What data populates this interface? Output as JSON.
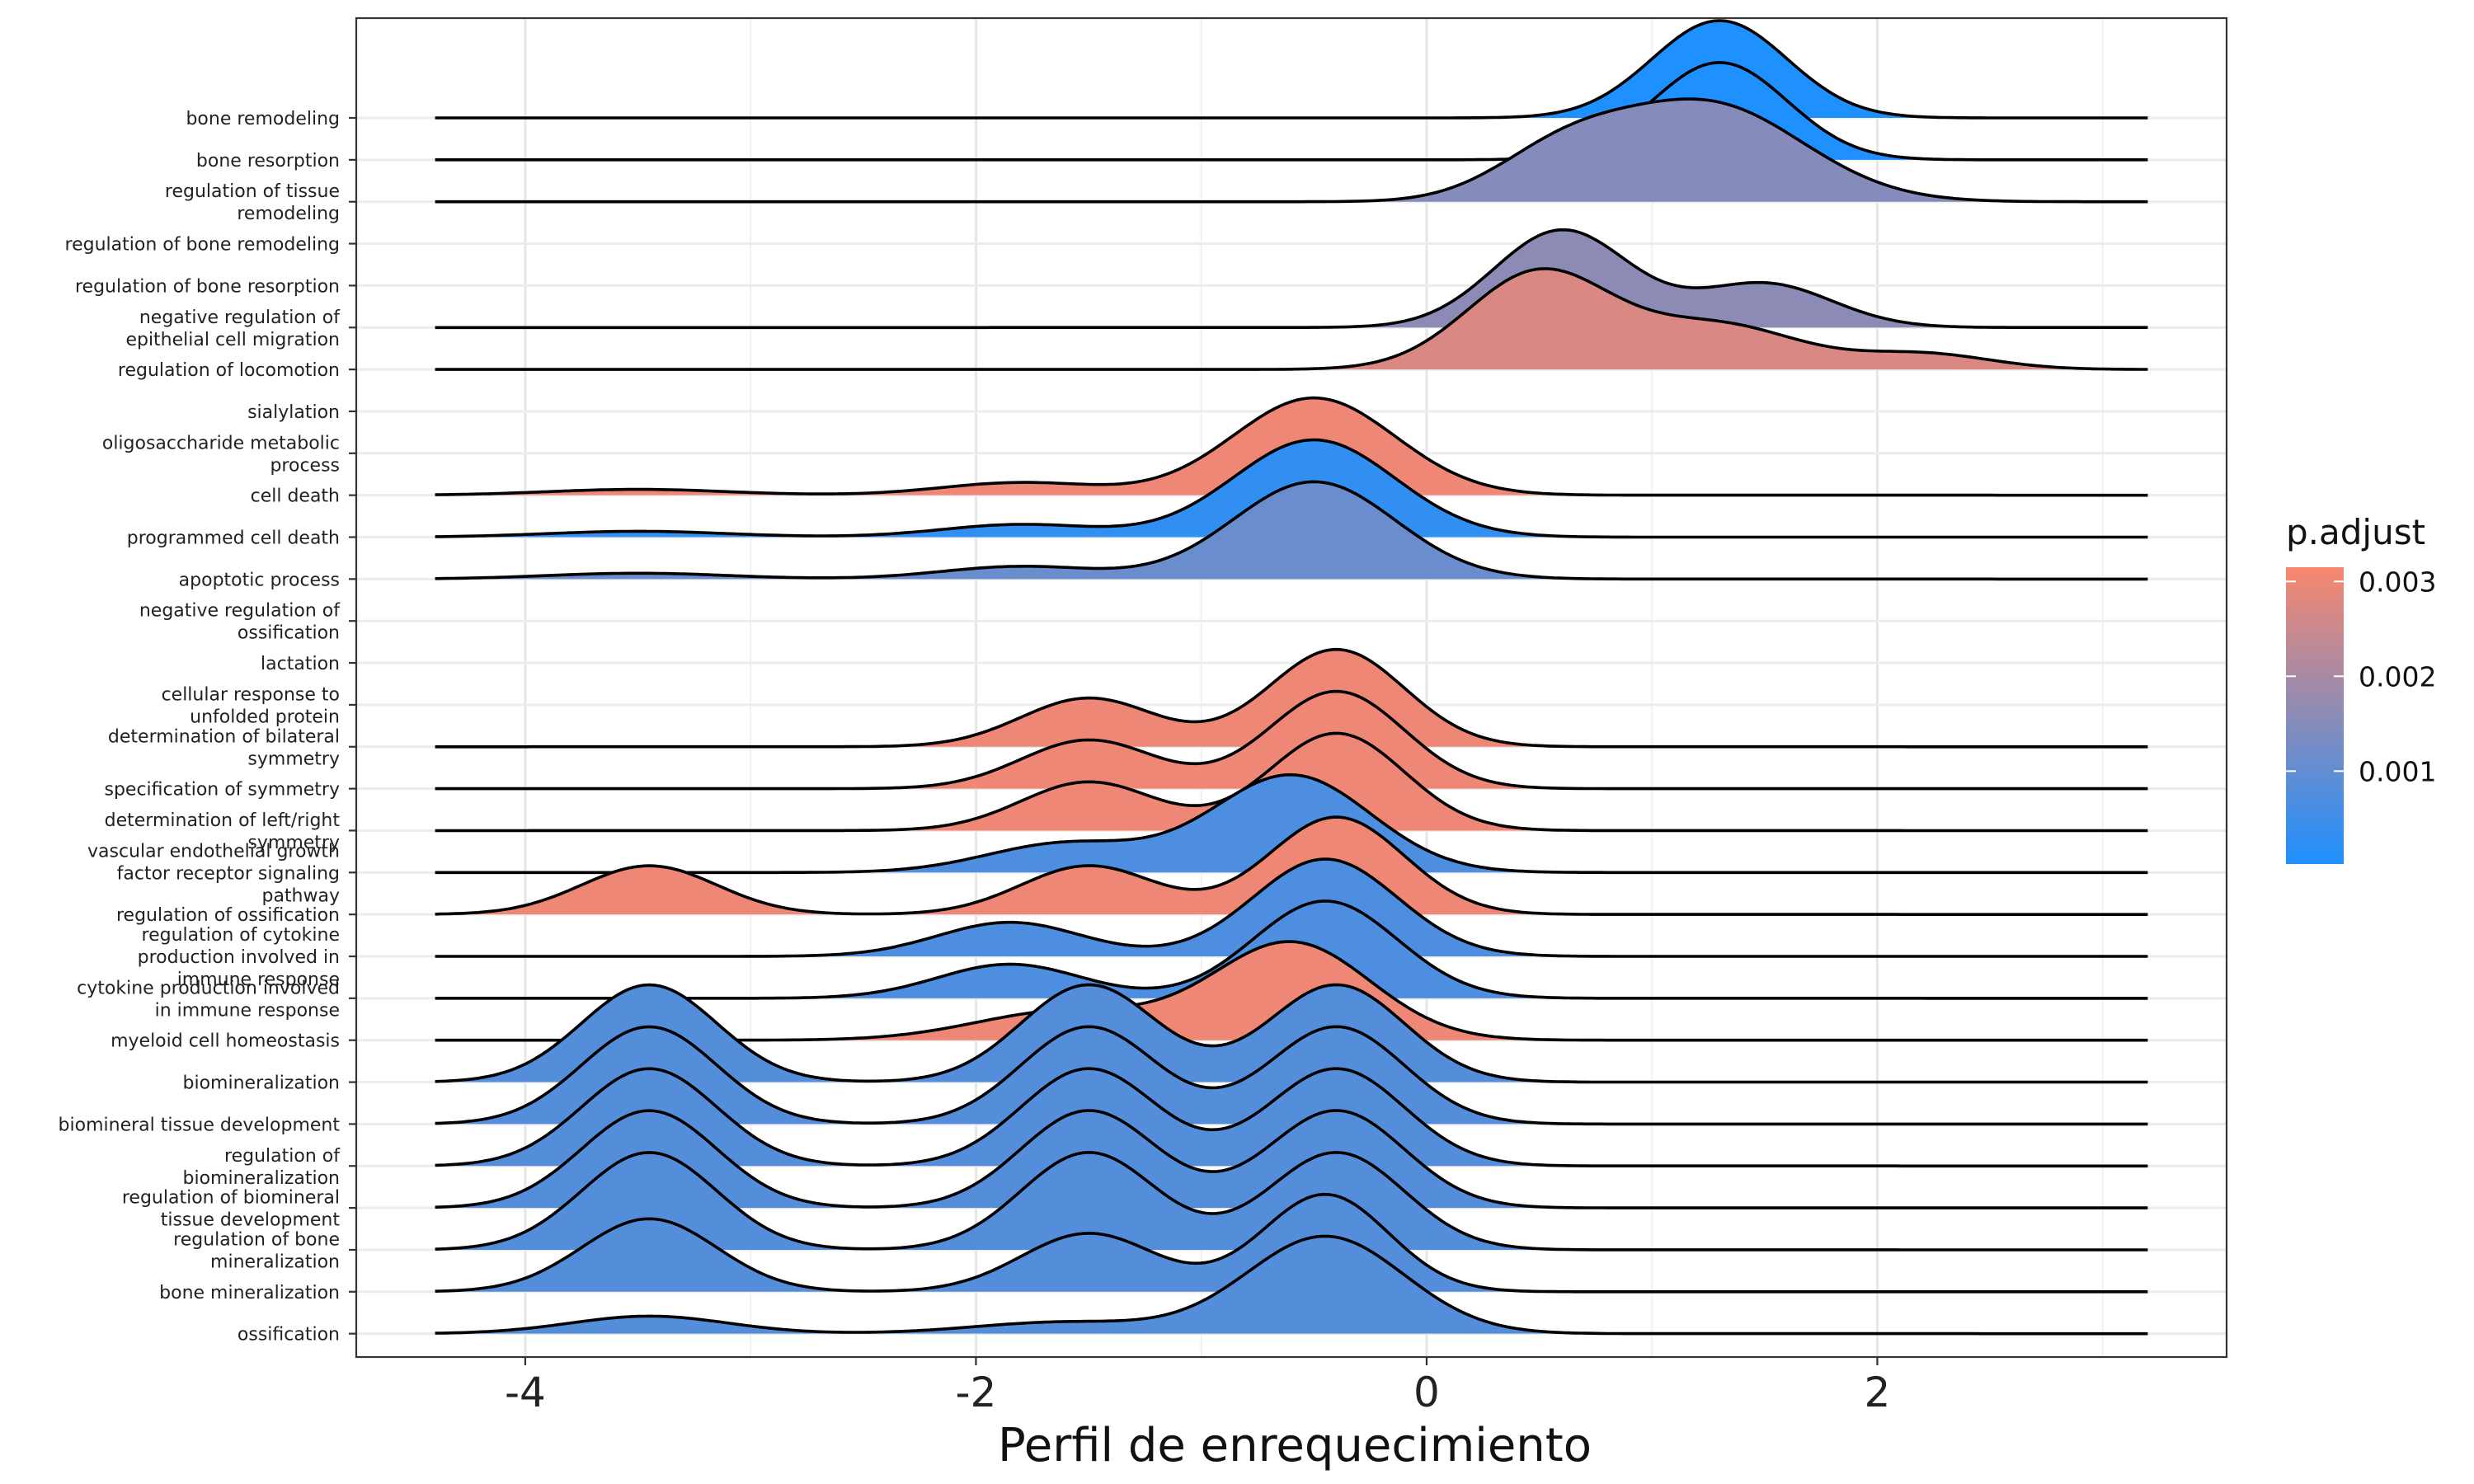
{
  "chart_data": {
    "type": "ridgeline",
    "xlabel": "Perfil de enrequecimiento",
    "xlim": [
      -4.75,
      3.55
    ],
    "xticks": [
      -4,
      -2,
      0,
      2
    ],
    "xtick_labels": [
      "-4",
      "-2",
      "0",
      "2"
    ],
    "legend": {
      "title": "p.adjust",
      "ticks": [
        0.003,
        0.002,
        0.001
      ],
      "tick_labels": [
        "0.003",
        "0.002",
        "0.001"
      ],
      "range": [
        2e-05,
        0.00315
      ],
      "color_high": "#F8876F",
      "color_low": "#1E90FF",
      "placement": "right"
    },
    "categories": [
      {
        "label": "bone remodeling",
        "p": 2e-05,
        "peaks": [
          [
            1.3,
            0.3,
            1.0
          ]
        ]
      },
      {
        "label": "bone resorption",
        "p": 2e-05,
        "peaks": [
          [
            1.3,
            0.3,
            1.0
          ]
        ]
      },
      {
        "label": "regulation of tissue\nremodeling",
        "p": 0.0015,
        "peaks": [
          [
            1.25,
            0.42,
            1.0
          ],
          [
            0.6,
            0.3,
            0.45
          ]
        ]
      },
      {
        "label": "regulation of bone remodeling",
        "p": 0.0015,
        "peaks": []
      },
      {
        "label": "regulation of bone resorption",
        "p": 0.0015,
        "peaks": []
      },
      {
        "label": "negative regulation of\nepithelial cell migration",
        "p": 0.0016,
        "peaks": [
          [
            0.6,
            0.3,
            1.0
          ],
          [
            1.5,
            0.3,
            0.45
          ]
        ]
      },
      {
        "label": "regulation of locomotion",
        "p": 0.0027,
        "peaks": [
          [
            0.5,
            0.32,
            1.0
          ],
          [
            1.3,
            0.35,
            0.45
          ],
          [
            2.2,
            0.3,
            0.16
          ]
        ]
      },
      {
        "label": "sialylation",
        "p": 0.003,
        "peaks": []
      },
      {
        "label": "oligosaccharide metabolic\nprocess",
        "p": 0.003,
        "peaks": []
      },
      {
        "label": "cell death",
        "p": 0.003,
        "peaks": [
          [
            -0.5,
            0.36,
            1.0
          ],
          [
            -1.8,
            0.35,
            0.13
          ],
          [
            -3.5,
            0.4,
            0.06
          ]
        ]
      },
      {
        "label": "programmed cell death",
        "p": 0.0003,
        "peaks": [
          [
            -0.5,
            0.36,
            1.0
          ],
          [
            -1.8,
            0.35,
            0.13
          ],
          [
            -3.5,
            0.4,
            0.06
          ]
        ]
      },
      {
        "label": "apoptotic process",
        "p": 0.0011,
        "peaks": [
          [
            -0.5,
            0.36,
            1.0
          ],
          [
            -1.8,
            0.35,
            0.13
          ],
          [
            -3.5,
            0.4,
            0.06
          ]
        ]
      },
      {
        "label": "negative regulation of\nossification",
        "p": 0.003,
        "peaks": []
      },
      {
        "label": "lactation",
        "p": 0.003,
        "peaks": []
      },
      {
        "label": "cellular response to\nunfolded protein",
        "p": 0.003,
        "peaks": []
      },
      {
        "label": "determination of bilateral\nsymmetry",
        "p": 0.003,
        "peaks": [
          [
            -0.4,
            0.3,
            1.0
          ],
          [
            -1.5,
            0.3,
            0.5
          ]
        ]
      },
      {
        "label": "specification of symmetry",
        "p": 0.003,
        "peaks": [
          [
            -0.4,
            0.3,
            1.0
          ],
          [
            -1.5,
            0.3,
            0.5
          ]
        ]
      },
      {
        "label": "determination of left/right\nsymmetry",
        "p": 0.003,
        "peaks": [
          [
            -0.4,
            0.3,
            1.0
          ],
          [
            -1.5,
            0.3,
            0.5
          ]
        ]
      },
      {
        "label": "vascular endothelial growth\nfactor receptor signaling\npathway",
        "p": 0.0007,
        "peaks": [
          [
            -0.6,
            0.35,
            1.0
          ],
          [
            -1.6,
            0.35,
            0.3
          ]
        ]
      },
      {
        "label": "regulation of ossification",
        "p": 0.003,
        "peaks": [
          [
            -0.4,
            0.3,
            1.0
          ],
          [
            -1.5,
            0.3,
            0.5
          ],
          [
            -3.45,
            0.3,
            0.5
          ]
        ]
      },
      {
        "label": "regulation of cytokine\nproduction involved in\nimmune response",
        "p": 0.0007,
        "peaks": [
          [
            -0.45,
            0.32,
            1.0
          ],
          [
            -1.85,
            0.32,
            0.35
          ]
        ]
      },
      {
        "label": "cytokine production involved\nin immune response",
        "p": 0.0007,
        "peaks": [
          [
            -0.45,
            0.32,
            1.0
          ],
          [
            -1.85,
            0.32,
            0.35
          ]
        ]
      },
      {
        "label": "myeloid cell homeostasis",
        "p": 0.003,
        "peaks": [
          [
            -0.6,
            0.35,
            1.0
          ],
          [
            -1.6,
            0.4,
            0.3
          ]
        ]
      },
      {
        "label": "biomineralization",
        "p": 0.0008,
        "peaks": [
          [
            -3.45,
            0.3,
            1.0
          ],
          [
            -1.5,
            0.3,
            1.0
          ],
          [
            -0.4,
            0.3,
            1.0
          ]
        ]
      },
      {
        "label": "biomineral tissue development",
        "p": 0.0008,
        "peaks": [
          [
            -3.45,
            0.3,
            1.0
          ],
          [
            -1.5,
            0.3,
            1.0
          ],
          [
            -0.4,
            0.3,
            1.0
          ]
        ]
      },
      {
        "label": "regulation of\nbiomineralization",
        "p": 0.0008,
        "peaks": [
          [
            -3.45,
            0.3,
            1.0
          ],
          [
            -1.5,
            0.3,
            1.0
          ],
          [
            -0.4,
            0.3,
            1.0
          ]
        ]
      },
      {
        "label": "regulation of biomineral\ntissue development",
        "p": 0.0008,
        "peaks": [
          [
            -3.45,
            0.3,
            1.0
          ],
          [
            -1.5,
            0.3,
            1.0
          ],
          [
            -0.4,
            0.3,
            1.0
          ]
        ]
      },
      {
        "label": "regulation of bone\nmineralization",
        "p": 0.0008,
        "peaks": [
          [
            -3.45,
            0.3,
            1.0
          ],
          [
            -1.5,
            0.3,
            1.0
          ],
          [
            -0.4,
            0.3,
            1.0
          ]
        ]
      },
      {
        "label": "bone mineralization",
        "p": 0.0008,
        "peaks": [
          [
            -3.45,
            0.3,
            0.75
          ],
          [
            -1.5,
            0.3,
            0.6
          ],
          [
            -0.45,
            0.28,
            1.0
          ]
        ]
      },
      {
        "label": "ossification",
        "p": 0.0008,
        "peaks": [
          [
            -3.45,
            0.35,
            0.18
          ],
          [
            -1.6,
            0.4,
            0.12
          ],
          [
            -0.45,
            0.35,
            1.0
          ]
        ]
      }
    ]
  }
}
